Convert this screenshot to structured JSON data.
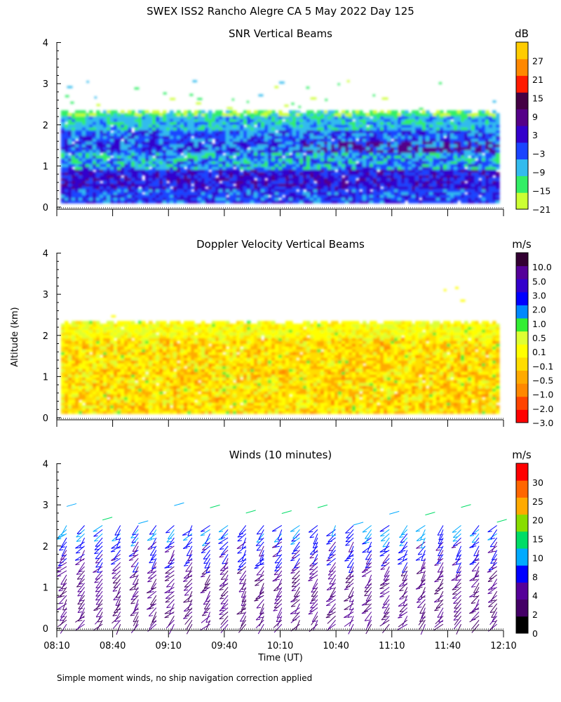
{
  "figure": {
    "title": "SWEX ISS2 Rancho Alegre CA   5 May 2022 Day 125",
    "ylabel": "Altitude (km)",
    "xlabel": "Time (UT)",
    "footnote": "Simple moment winds, no ship navigation correction applied"
  },
  "colors": {
    "snr": [
      "#ccff33",
      "#33ee66",
      "#33bbee",
      "#1a44ff",
      "#3300cc",
      "#550088",
      "#440044",
      "#ff1a00",
      "#ff8800",
      "#ffcc00"
    ],
    "doppler": [
      "#ff0000",
      "#ff4400",
      "#ff8800",
      "#ffaa00",
      "#ffdd00",
      "#ffff00",
      "#ddff33",
      "#33ee33",
      "#0088ff",
      "#0000ff",
      "#3300cc",
      "#550099",
      "#330033"
    ],
    "wind": [
      "#000000",
      "#440066",
      "#550099",
      "#0000ff",
      "#00aaff",
      "#00dd66",
      "#88dd00",
      "#ffaa00",
      "#ff6600",
      "#ff0000"
    ]
  },
  "chart_data": [
    {
      "type": "heatmap",
      "title": "SNR Vertical Beams",
      "unit": "dB",
      "colorbar_ticks": [
        "27",
        "21",
        "15",
        "9",
        "3",
        "−3",
        "−9",
        "−15",
        "−21"
      ],
      "ylim": [
        0,
        4
      ],
      "y_ticks": [
        "0",
        "1",
        "2",
        "3",
        "4"
      ],
      "x_ticks": [
        "08:10",
        "08:40",
        "09:10",
        "09:40",
        "10:10",
        "10:40",
        "11:10",
        "11:40",
        "12:10"
      ],
      "data_top_km": 2.3,
      "note": "Strong returns (≈3–9 dB) below 2 km, weaker (−9 to −21 dB) near 2.0–2.4 km"
    },
    {
      "type": "heatmap",
      "title": "Doppler Velocity Vertical Beams",
      "unit": "m/s",
      "colorbar_ticks": [
        "10.0",
        "5.0",
        "3.0",
        "2.0",
        "1.0",
        "0.5",
        "0.1",
        "−0.1",
        "−0.5",
        "−1.0",
        "−2.0",
        "−3.0"
      ],
      "ylim": [
        0,
        4
      ],
      "y_ticks": [
        "0",
        "1",
        "2",
        "3",
        "4"
      ],
      "x_ticks": [
        "08:10",
        "08:40",
        "09:10",
        "09:40",
        "10:10",
        "10:40",
        "11:10",
        "11:40",
        "12:10"
      ],
      "data_top_km": 2.3,
      "note": "Mostly −1.0 to 0.1 m/s, weak subsidence"
    },
    {
      "type": "barbs",
      "title": "Winds (10 minutes)",
      "unit": "m/s",
      "colorbar_ticks": [
        "30",
        "25",
        "20",
        "15",
        "10",
        "8",
        "4",
        "2",
        "0"
      ],
      "ylim": [
        0,
        4
      ],
      "y_ticks": [
        "0",
        "1",
        "2",
        "3",
        "4"
      ],
      "x_ticks": [
        "08:10",
        "08:40",
        "09:10",
        "09:40",
        "10:10",
        "10:40",
        "11:10",
        "11:40",
        "12:10"
      ],
      "profile_times": [
        "08:10",
        "08:20",
        "08:30",
        "08:40",
        "08:50",
        "09:00",
        "09:10",
        "09:20",
        "09:30",
        "09:40",
        "09:50",
        "10:00",
        "10:10",
        "10:20",
        "10:30",
        "10:40",
        "10:50",
        "11:00",
        "11:10",
        "11:20",
        "11:30",
        "11:40",
        "11:50",
        "12:00",
        "12:10"
      ],
      "levels_km": [
        0.1,
        0.2,
        0.3,
        0.4,
        0.5,
        0.6,
        0.7,
        0.8,
        0.9,
        1.0,
        1.1,
        1.2,
        1.3,
        1.4,
        1.5,
        1.6,
        1.7,
        1.8,
        1.9,
        2.0,
        2.1,
        2.2,
        2.3,
        2.4,
        2.5
      ],
      "note": "Northwesterly winds mostly 2–8 m/s; weaker near surface, 8–15 m/s above 2 km"
    }
  ]
}
